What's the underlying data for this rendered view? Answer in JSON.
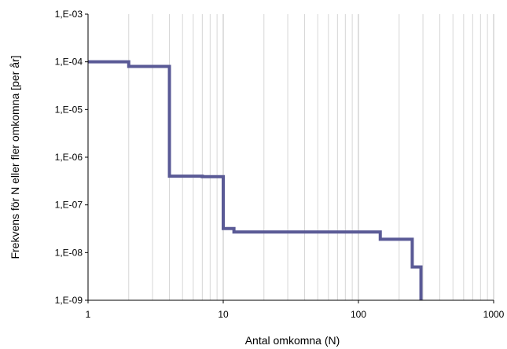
{
  "chart_data": {
    "type": "line",
    "title": "",
    "xlabel": "Antal omkomna (N)",
    "ylabel": "Frekvens för N eller fler omkomna [per år]",
    "x_scale": "log",
    "y_scale": "log",
    "xlim": [
      1,
      1000
    ],
    "ylim": [
      1e-09,
      0.001
    ],
    "x_ticks": [
      1,
      10,
      100,
      1000
    ],
    "x_tick_labels": [
      "1",
      "10",
      "100",
      "1000"
    ],
    "y_ticks": [
      1e-09,
      1e-08,
      1e-07,
      1e-06,
      1e-05,
      0.0001,
      0.001
    ],
    "y_tick_labels": [
      "1,E-09",
      "1,E-08",
      "1,E-07",
      "1,E-06",
      "1,E-05",
      "1,E-04",
      "1,E-03"
    ],
    "grid": {
      "x_major": true,
      "x_minor": true,
      "y": false
    },
    "legend": "none",
    "line_color": "#5a5a96",
    "step": "post",
    "series": [
      {
        "x": [
          1,
          2,
          4,
          7,
          10,
          12,
          145,
          250,
          290,
          290
        ],
        "y": [
          0.0001,
          8e-05,
          4e-07,
          3.9e-07,
          3.2e-08,
          2.7e-08,
          1.9e-08,
          5e-09,
          1e-09,
          1e-09
        ]
      }
    ]
  }
}
